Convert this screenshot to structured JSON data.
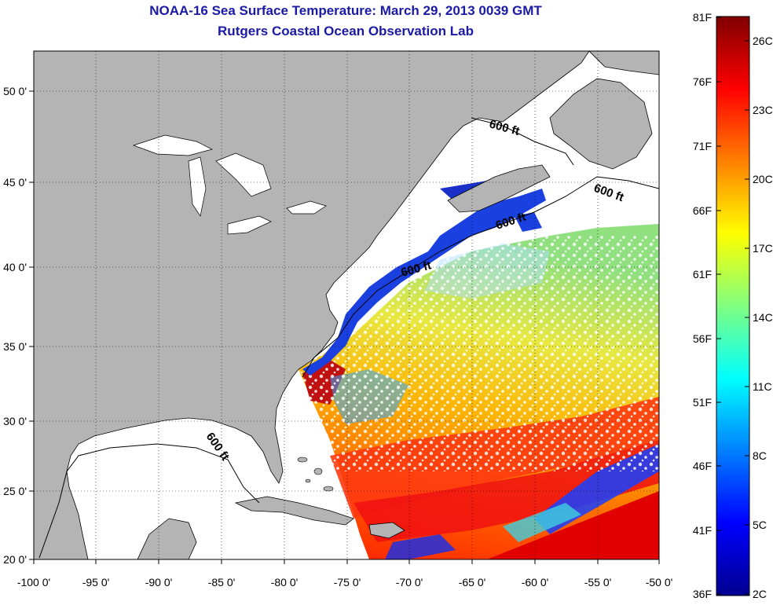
{
  "header": {
    "title_line1": "NOAA-16 Sea Surface Temperature:  March 29, 2013 0039 GMT",
    "title_line2": "Rutgers Coastal Ocean Observation Lab"
  },
  "map": {
    "lon_ticks": [
      "-100 0'",
      "-95 0'",
      "-90 0'",
      "-85 0'",
      "-80 0'",
      "-75 0'",
      "-70 0'",
      "-65 0'",
      "-60 0'",
      "-55 0'",
      "-50 0'"
    ],
    "lat_ticks": [
      "50 0'",
      "45 0'",
      "40 0'",
      "35 0'",
      "30 0'",
      "25 0'",
      "20 0'"
    ],
    "isobath_labels": [
      "600 ft",
      "600 ft",
      "600 ft",
      "600 ft",
      "600 ft"
    ],
    "colors": {
      "land": "#b4b4b4",
      "ocean_clear": "#ffffff",
      "frame": "#000000"
    }
  },
  "colorbar": {
    "fahrenheit_labels": [
      "81F",
      "76F",
      "71F",
      "66F",
      "61F",
      "56F",
      "51F",
      "46F",
      "41F",
      "36F"
    ],
    "celsius_labels": [
      "26C",
      "23C",
      "20C",
      "17C",
      "14C",
      "11C",
      "8C",
      "5C",
      "2C"
    ],
    "gradient": [
      "#800000",
      "#ff0000",
      "#ff8000",
      "#ffff00",
      "#80ff80",
      "#00ffff",
      "#0080ff",
      "#0000ff",
      "#00008f"
    ]
  }
}
